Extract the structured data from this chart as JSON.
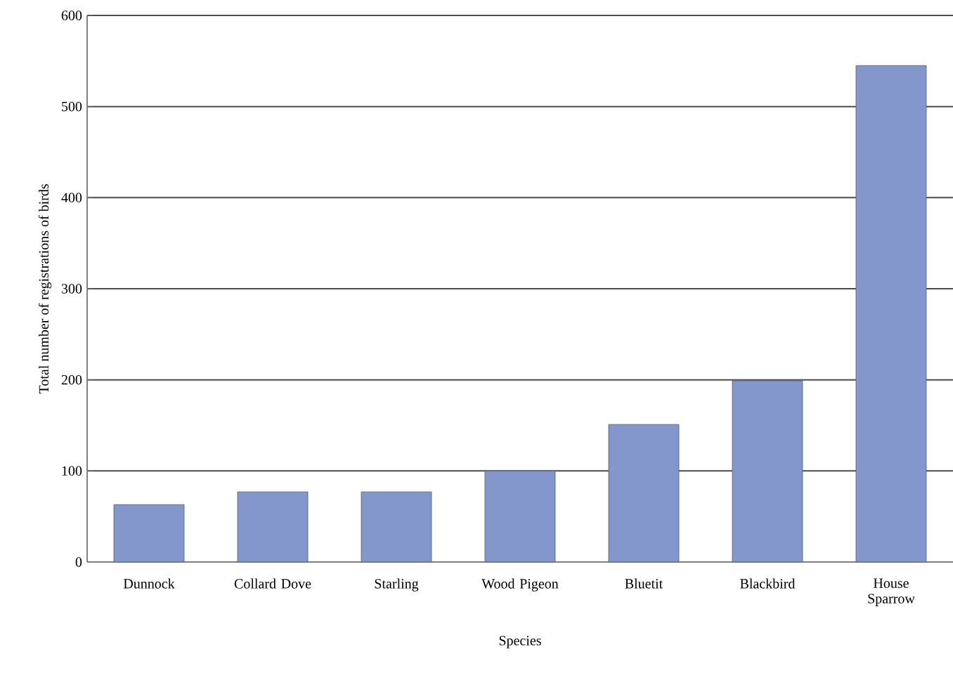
{
  "chart_data": {
    "type": "bar",
    "xlabel": "Species",
    "ylabel": "Total number of registrations of birds",
    "categories": [
      "Dunnock",
      "Collard Dove",
      "Starling",
      "Wood Pigeon",
      "Bluetit",
      "Blackbird",
      "House Sparrow"
    ],
    "values": [
      63,
      77,
      77,
      100,
      151,
      199,
      545
    ],
    "color": "#8497cc",
    "ylim": [
      0,
      600
    ],
    "yticks": [
      0,
      100,
      200,
      300,
      400,
      500,
      600
    ],
    "grid": "y"
  }
}
